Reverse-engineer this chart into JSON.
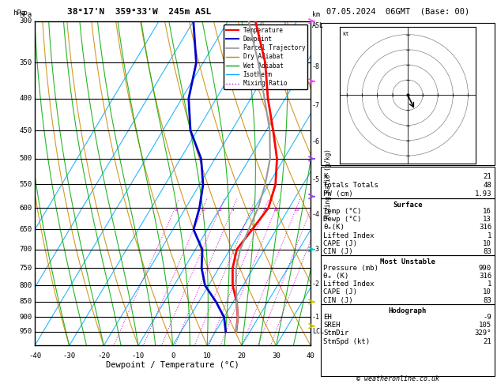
{
  "title_left": "38°17'N  359°33'W  245m ASL",
  "title_right": "07.05.2024  06GMT  (Base: 00)",
  "copyright": "© weatheronline.co.uk",
  "xlabel": "Dewpoint / Temperature (°C)",
  "pressure_levels": [
    300,
    350,
    400,
    450,
    500,
    550,
    600,
    650,
    700,
    750,
    800,
    850,
    900,
    950
  ],
  "p_min": 300,
  "p_max": 1000,
  "T_min": -40,
  "T_max": 40,
  "skew_factor": 0.7,
  "temp_profile": {
    "pressure": [
      950,
      900,
      850,
      800,
      750,
      700,
      650,
      600,
      550,
      500,
      450,
      400,
      350,
      300
    ],
    "temperature": [
      16,
      14,
      11,
      7,
      4,
      2,
      3,
      4,
      2,
      -2,
      -8,
      -15,
      -22,
      -32
    ]
  },
  "dewpoint_profile": {
    "pressure": [
      950,
      900,
      850,
      800,
      750,
      700,
      650,
      600,
      550,
      500,
      450,
      400,
      350,
      300
    ],
    "dewpoint": [
      13,
      10,
      5,
      -1,
      -5,
      -8,
      -14,
      -16,
      -19,
      -24,
      -32,
      -38,
      -42,
      -50
    ]
  },
  "parcel_profile": {
    "pressure": [
      950,
      900,
      850,
      800,
      750,
      700,
      650,
      600,
      550,
      500,
      450,
      400,
      350,
      300
    ],
    "temperature": [
      16,
      14,
      11,
      8,
      5,
      3,
      2,
      1,
      -1,
      -4,
      -9,
      -16,
      -24,
      -34
    ]
  },
  "lcl_pressure": 950,
  "mixing_ratio_values": [
    1,
    2,
    3,
    4,
    6,
    8,
    10,
    15,
    20,
    25
  ],
  "km_ticks": [
    1,
    2,
    3,
    4,
    5,
    6,
    7,
    8
  ],
  "km_pressures": [
    900,
    795,
    700,
    615,
    540,
    470,
    410,
    355
  ],
  "colors": {
    "temperature": "#ff0000",
    "dewpoint": "#0000cc",
    "parcel": "#999999",
    "dry_adiabat": "#cc8800",
    "wet_adiabat": "#00aa00",
    "isotherm": "#00aaff",
    "mixing_ratio": "#cc00cc",
    "background": "#ffffff",
    "grid": "#000000"
  },
  "info_panel": {
    "K": 21,
    "Totals_Totals": 48,
    "PW_cm": 1.93,
    "Surface": {
      "Temp_C": 16,
      "Dewp_C": 13,
      "theta_e_K": 316,
      "Lifted_Index": 1,
      "CAPE_J": 10,
      "CIN_J": 83
    },
    "Most_Unstable": {
      "Pressure_mb": 990,
      "theta_e_K": 316,
      "Lifted_Index": 1,
      "CAPE_J": 10,
      "CIN_J": 83
    },
    "Hodograph": {
      "EH": -9,
      "SREH": 105,
      "StmDir_deg": 329,
      "StmSpd_kt": 21
    }
  }
}
